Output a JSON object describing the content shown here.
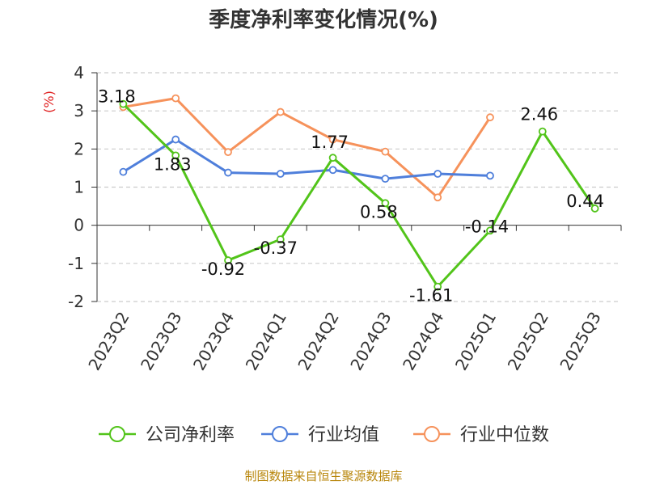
{
  "chart_data": {
    "type": "line",
    "title": "季度净利率变化情况(%)",
    "ylabel": "(%)",
    "ylim": [
      -2,
      4
    ],
    "yticks": [
      "4",
      "3",
      "2",
      "1",
      "0",
      "-1",
      "-2"
    ],
    "grid": true,
    "legend_position": "bottom",
    "categories": [
      "2023Q2",
      "2023Q3",
      "2023Q4",
      "2024Q1",
      "2024Q2",
      "2024Q3",
      "2024Q4",
      "2025Q1",
      "2025Q2",
      "2025Q3"
    ],
    "series": [
      {
        "name": "公司净利率",
        "color": "#52c41a",
        "values": [
          3.18,
          1.83,
          -0.92,
          -0.37,
          1.77,
          0.58,
          -1.61,
          -0.14,
          2.46,
          0.44
        ],
        "labels": [
          "3.18",
          "1.83",
          "-0.92",
          "-0.37",
          "1.77",
          "0.58",
          "-1.61",
          "-0.14",
          "2.46",
          "0.44"
        ]
      },
      {
        "name": "行业均值",
        "color": "#4f7fdb",
        "values": [
          1.4,
          2.25,
          1.38,
          1.35,
          1.45,
          1.22,
          1.35,
          1.3,
          null,
          null
        ]
      },
      {
        "name": "行业中位数",
        "color": "#f6925b",
        "values": [
          3.1,
          3.33,
          1.92,
          2.97,
          2.25,
          1.93,
          0.73,
          2.83,
          null,
          null
        ]
      }
    ]
  },
  "source_text": "制图数据来自恒生聚源数据库",
  "colors": {
    "title": "#333333",
    "axis_label": "#e02020",
    "source": "#b8860b"
  }
}
